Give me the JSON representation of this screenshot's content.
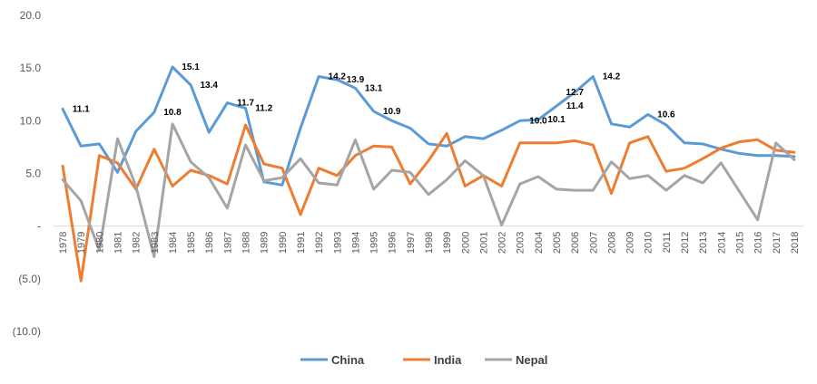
{
  "chart_data": {
    "type": "line",
    "title": "",
    "xlabel": "",
    "ylabel": "",
    "ylim": [
      -10,
      20
    ],
    "grid": false,
    "legend_position": "bottom",
    "y_ticks": [
      {
        "value": 20,
        "label": "20.0"
      },
      {
        "value": 15,
        "label": "15.0"
      },
      {
        "value": 10,
        "label": "10.0"
      },
      {
        "value": 5,
        "label": "5.0"
      },
      {
        "value": 0,
        "label": "-"
      },
      {
        "value": -5,
        "label": "(5.0)"
      },
      {
        "value": -10,
        "label": "(10.0)"
      }
    ],
    "categories": [
      "1978",
      "1979",
      "1980",
      "1981",
      "1982",
      "1983",
      "1984",
      "1985",
      "1986",
      "1987",
      "1988",
      "1989",
      "1990",
      "1991",
      "1992",
      "1993",
      "1994",
      "1995",
      "1996",
      "1997",
      "1998",
      "1999",
      "2000",
      "2001",
      "2002",
      "2003",
      "2004",
      "2005",
      "2006",
      "2007",
      "2008",
      "2009",
      "2010",
      "2011",
      "2012",
      "2013",
      "2014",
      "2015",
      "2016",
      "2017",
      "2018"
    ],
    "series": [
      {
        "name": "China",
        "color": "#5B9BD5",
        "values": [
          11.1,
          7.6,
          7.8,
          5.1,
          9.0,
          10.8,
          15.1,
          13.4,
          8.9,
          11.7,
          11.2,
          4.2,
          3.9,
          9.3,
          14.2,
          13.9,
          13.1,
          10.9,
          10.0,
          9.3,
          7.8,
          7.6,
          8.5,
          8.3,
          9.1,
          10.0,
          10.1,
          11.4,
          12.7,
          14.2,
          9.7,
          9.4,
          10.6,
          9.6,
          7.9,
          7.8,
          7.3,
          6.9,
          6.7,
          6.7,
          6.6
        ]
      },
      {
        "name": "India",
        "color": "#ED7D31",
        "values": [
          5.7,
          -5.2,
          6.7,
          6.0,
          3.5,
          7.3,
          3.8,
          5.3,
          4.8,
          4.0,
          9.6,
          5.9,
          5.5,
          1.1,
          5.5,
          4.8,
          6.7,
          7.6,
          7.5,
          4.0,
          6.2,
          8.8,
          3.8,
          4.8,
          3.8,
          7.9,
          7.9,
          7.9,
          8.1,
          7.7,
          3.1,
          7.9,
          8.5,
          5.2,
          5.5,
          6.4,
          7.4,
          8.0,
          8.2,
          7.2,
          7.0
        ]
      },
      {
        "name": "Nepal",
        "color": "#A5A5A5",
        "values": [
          4.4,
          2.4,
          -2.3,
          8.3,
          3.8,
          -2.9,
          9.7,
          6.1,
          4.6,
          1.7,
          7.7,
          4.3,
          4.6,
          6.4,
          4.1,
          3.9,
          8.2,
          3.5,
          5.3,
          5.1,
          3.0,
          4.4,
          6.2,
          4.8,
          0.1,
          4.0,
          4.7,
          3.5,
          3.4,
          3.4,
          6.1,
          4.5,
          4.8,
          3.4,
          4.8,
          4.1,
          6.0,
          3.3,
          0.6,
          7.9,
          6.3
        ]
      }
    ],
    "annotations": [
      {
        "category": "1979",
        "value": 11.1,
        "text": "11.1"
      },
      {
        "category": "1984",
        "value": 10.8,
        "text": "10.8"
      },
      {
        "category": "1985",
        "value": 15.1,
        "text": "15.1"
      },
      {
        "category": "1986",
        "value": 13.4,
        "text": "13.4"
      },
      {
        "category": "1988",
        "value": 11.7,
        "text": "11.7"
      },
      {
        "category": "1989",
        "value": 11.2,
        "text": "11.2"
      },
      {
        "category": "1993",
        "value": 14.2,
        "text": "14.2"
      },
      {
        "category": "1994",
        "value": 13.9,
        "text": "13.9"
      },
      {
        "category": "1995",
        "value": 13.1,
        "text": "13.1"
      },
      {
        "category": "1996",
        "value": 10.9,
        "text": "10.9"
      },
      {
        "category": "2004",
        "value": 10.0,
        "text": "10.0"
      },
      {
        "category": "2005",
        "value": 10.1,
        "text": "10.1"
      },
      {
        "category": "2006",
        "value": 12.7,
        "text": "12.7"
      },
      {
        "category": "2006",
        "value": 11.4,
        "text": "11.4"
      },
      {
        "category": "2008",
        "value": 14.2,
        "text": "14.2"
      },
      {
        "category": "2011",
        "value": 10.6,
        "text": "10.6"
      }
    ]
  }
}
